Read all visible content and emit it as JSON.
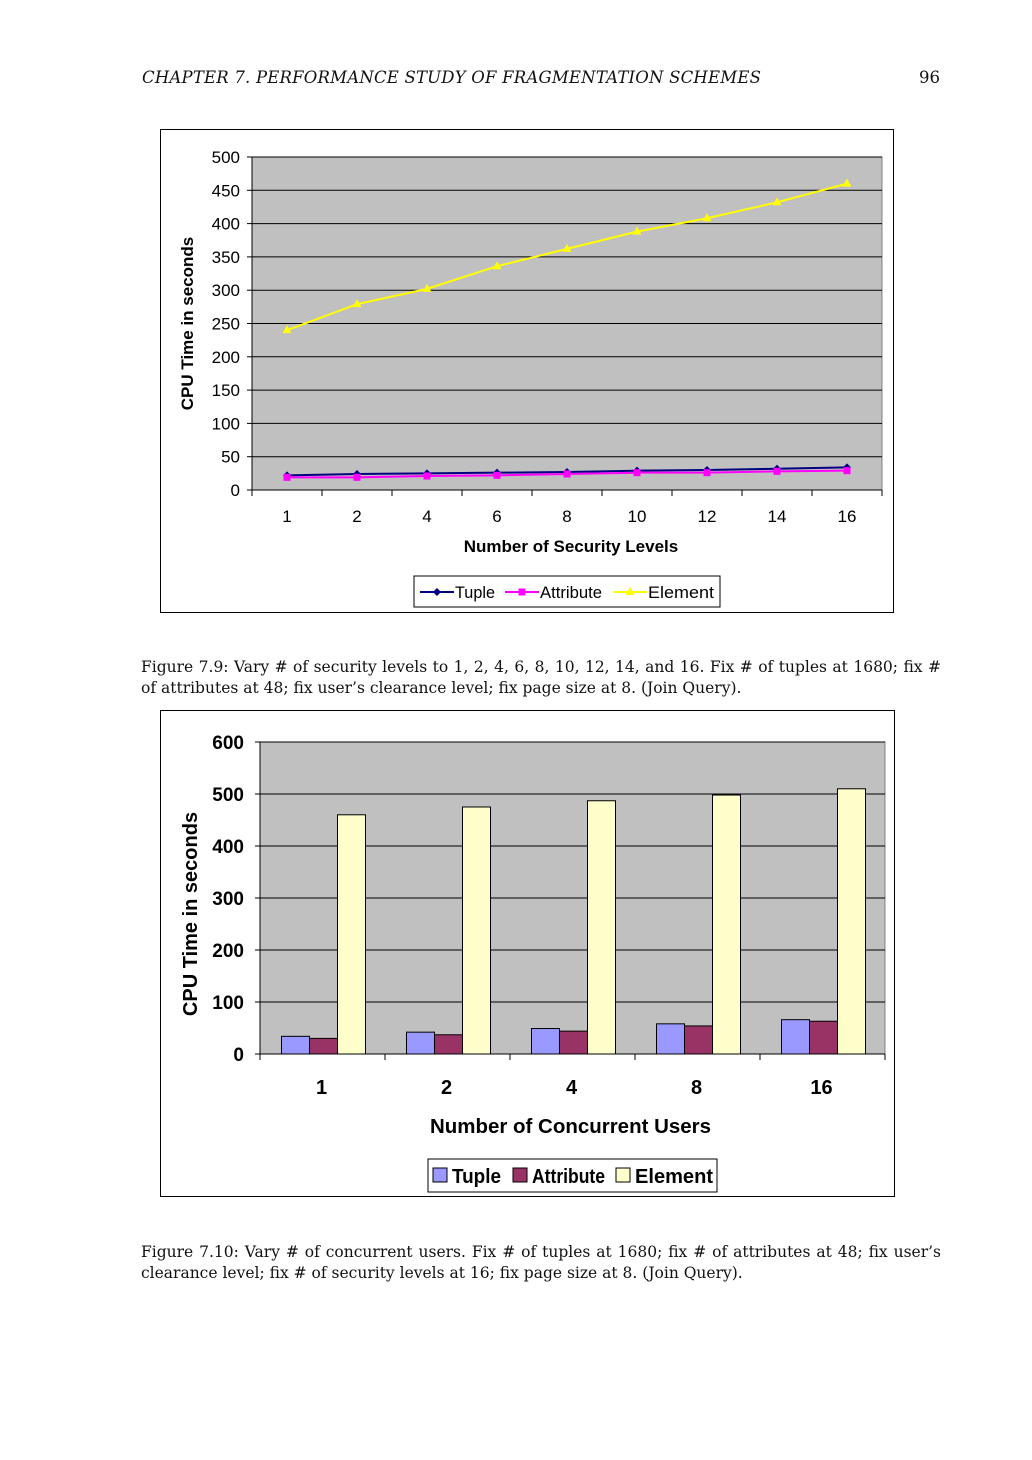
{
  "header": {
    "chapter": "CHAPTER 7.  PERFORMANCE STUDY OF FRAGMENTATION SCHEMES",
    "page_number": "96"
  },
  "colors": {
    "plot_bg": "#c0c0c0",
    "tuple_line": "#000080",
    "attribute_line": "#ff00ff",
    "element_line": "#ffff00",
    "tuple_bar": "#9999ff",
    "attribute_bar": "#993366",
    "element_bar": "#ffffcc"
  },
  "chart_data": [
    {
      "type": "line",
      "ylabel": "CPU Time in seconds",
      "xlabel": "Number of Security Levels",
      "categories": [
        "1",
        "2",
        "4",
        "6",
        "8",
        "10",
        "12",
        "14",
        "16"
      ],
      "ylim": [
        0,
        500
      ],
      "yticks": [
        "0",
        "50",
        "100",
        "150",
        "200",
        "250",
        "300",
        "350",
        "400",
        "450",
        "500"
      ],
      "grid": true,
      "legend_position": "bottom",
      "series": [
        {
          "name": "Tuple",
          "values": [
            22,
            24,
            25,
            26,
            27,
            29,
            30,
            32,
            34
          ],
          "marker": "diamond"
        },
        {
          "name": "Attribute",
          "values": [
            19,
            19,
            21,
            22,
            24,
            26,
            26,
            28,
            29
          ],
          "marker": "square"
        },
        {
          "name": "Element",
          "values": [
            240,
            279,
            302,
            336,
            362,
            388,
            408,
            432,
            460
          ],
          "marker": "triangle"
        }
      ]
    },
    {
      "type": "bar",
      "ylabel": "CPU Time in seconds",
      "xlabel": "Number of Concurrent Users",
      "categories": [
        "1",
        "2",
        "4",
        "8",
        "16"
      ],
      "ylim": [
        0,
        600
      ],
      "yticks": [
        "0",
        "100",
        "200",
        "300",
        "400",
        "500",
        "600"
      ],
      "grid": true,
      "legend_position": "bottom",
      "series": [
        {
          "name": "Tuple",
          "values": [
            34,
            42,
            49,
            58,
            66
          ]
        },
        {
          "name": "Attribute",
          "values": [
            30,
            37,
            44,
            54,
            63
          ]
        },
        {
          "name": "Element",
          "values": [
            460,
            475,
            487,
            498,
            510
          ]
        }
      ]
    }
  ],
  "captions": {
    "fig1": "Figure 7.9: Vary # of security levels to 1, 2, 4, 6, 8, 10, 12, 14, and 16. Fix # of tuples at 1680; fix # of attributes at 48; fix user’s clearance level; fix page size at 8. (Join Query).",
    "fig2": "Figure 7.10: Vary # of concurrent users. Fix # of tuples at 1680; fix # of attributes at 48; fix user’s clearance level; fix # of security levels at 16; fix page size at 8. (Join Query)."
  }
}
